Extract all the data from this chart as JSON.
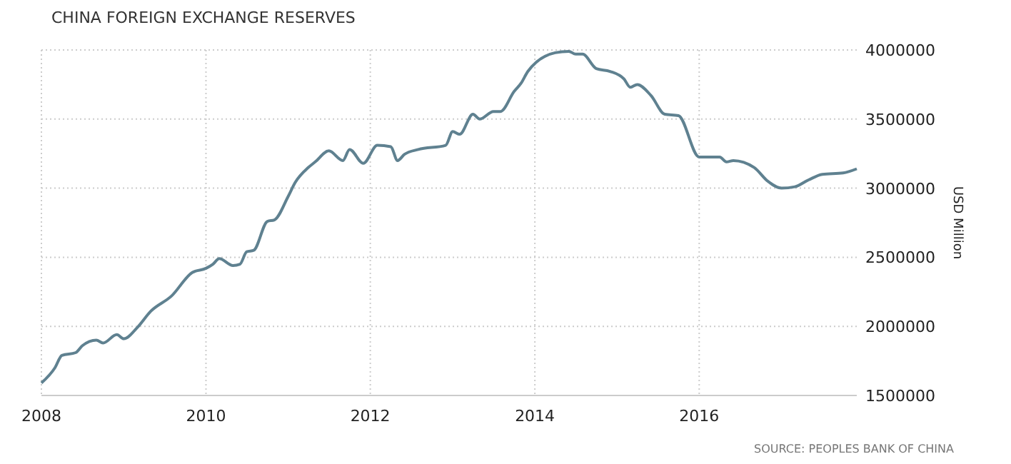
{
  "chart_data": {
    "type": "line",
    "title": "CHINA FOREIGN EXCHANGE RESERVES",
    "ylabel": "USD Million",
    "annotations": [
      "SOURCE: PEOPLES BANK OF CHINA"
    ],
    "x": [
      "2008-01",
      "2008-03",
      "2008-04",
      "2008-06",
      "2008-07",
      "2008-09",
      "2008-10",
      "2008-12",
      "2009-01",
      "2009-03",
      "2009-05",
      "2009-08",
      "2009-11",
      "2010-01",
      "2010-02",
      "2010-03",
      "2010-05",
      "2010-06",
      "2010-07",
      "2010-08",
      "2010-10",
      "2010-11",
      "2011-01",
      "2011-02",
      "2011-04",
      "2011-05",
      "2011-07",
      "2011-09",
      "2011-10",
      "2011-12",
      "2012-02",
      "2012-04",
      "2012-05",
      "2012-06",
      "2012-08",
      "2012-12",
      "2013-01",
      "2013-02",
      "2013-04",
      "2013-05",
      "2013-07",
      "2013-08",
      "2013-10",
      "2013-11",
      "2013-12",
      "2014-04",
      "2014-06",
      "2014-07",
      "2014-08",
      "2014-10",
      "2014-12",
      "2015-02",
      "2015-03",
      "2015-04",
      "2015-06",
      "2015-08",
      "2015-10",
      "2016-01",
      "2016-04",
      "2016-05",
      "2016-06",
      "2016-09",
      "2016-11",
      "2017-01",
      "2017-03",
      "2017-05",
      "2017-07",
      "2017-10",
      "2017-12"
    ],
    "series": [
      {
        "color": "#5f8190",
        "values": [
          1590000,
          1700000,
          1790000,
          1810000,
          1860000,
          1900000,
          1880000,
          1940000,
          1910000,
          1990000,
          2110000,
          2220000,
          2390000,
          2420000,
          2450000,
          2490000,
          2440000,
          2450000,
          2540000,
          2550000,
          2760000,
          2770000,
          2940000,
          3040000,
          3150000,
          3190000,
          3270000,
          3200000,
          3280000,
          3180000,
          3310000,
          3300000,
          3200000,
          3245000,
          3280000,
          3310000,
          3410000,
          3390000,
          3535000,
          3500000,
          3555000,
          3555000,
          3700000,
          3760000,
          3845000,
          3980000,
          3990000,
          3970000,
          3970000,
          3865000,
          3845000,
          3790000,
          3730000,
          3750000,
          3670000,
          3535000,
          3525000,
          3225000,
          3225000,
          3190000,
          3200000,
          3150000,
          3050000,
          3000000,
          3010000,
          3060000,
          3100000,
          3110000,
          3140000
        ]
      }
    ],
    "xlim": [
      "2008-01",
      "2017-12"
    ],
    "xticks": [
      {
        "value": "2008",
        "label": "2008"
      },
      {
        "value": "2010",
        "label": "2010"
      },
      {
        "value": "2012",
        "label": "2012"
      },
      {
        "value": "2014",
        "label": "2014"
      },
      {
        "value": "2016",
        "label": "2016"
      }
    ],
    "ylim": [
      1500000,
      4000000
    ],
    "yticks": [
      1500000,
      2000000,
      2500000,
      3000000,
      3500000,
      4000000
    ],
    "grid": true,
    "line_style": "solid",
    "marker": "none"
  }
}
